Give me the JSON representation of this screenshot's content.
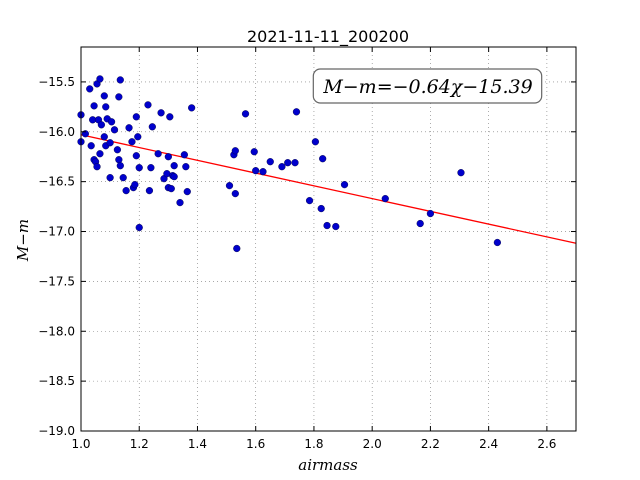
{
  "chart_data": {
    "type": "scatter",
    "title": "2021-11-11_200200",
    "xlabel": "airmass",
    "ylabel": "M−m",
    "xlim": [
      1.0,
      2.7
    ],
    "ylim": [
      -19.0,
      -15.15
    ],
    "y_inverted": true,
    "grid": true,
    "x_ticks": [
      1.0,
      1.2,
      1.4,
      1.6,
      1.8,
      2.0,
      2.2,
      2.4,
      2.6
    ],
    "x_tick_labels": [
      "1.0",
      "1.2",
      "1.4",
      "1.6",
      "1.8",
      "2.0",
      "2.2",
      "2.4",
      "2.6"
    ],
    "y_ticks": [
      -15.5,
      -16.0,
      -16.5,
      -17.0,
      -17.5,
      -18.0,
      -18.5,
      -19.0
    ],
    "y_tick_labels": [
      "−15.5",
      "−16.0",
      "−16.5",
      "−17.0",
      "−17.5",
      "−18.0",
      "−18.5",
      "−19.0"
    ],
    "annotation": "M−m=−0.64χ−15.39",
    "fit": {
      "slope": -0.64,
      "intercept": -15.39,
      "color": "#ff0000"
    },
    "point_color": "#0000cc",
    "points": [
      [
        1.0,
        -15.83
      ],
      [
        1.0,
        -16.1
      ],
      [
        1.015,
        -16.02
      ],
      [
        1.03,
        -15.57
      ],
      [
        1.035,
        -16.14
      ],
      [
        1.04,
        -15.88
      ],
      [
        1.045,
        -16.28
      ],
      [
        1.045,
        -15.74
      ],
      [
        1.05,
        -16.3
      ],
      [
        1.055,
        -15.52
      ],
      [
        1.055,
        -16.35
      ],
      [
        1.06,
        -15.88
      ],
      [
        1.065,
        -15.47
      ],
      [
        1.065,
        -16.22
      ],
      [
        1.07,
        -15.93
      ],
      [
        1.08,
        -15.64
      ],
      [
        1.08,
        -16.05
      ],
      [
        1.085,
        -15.75
      ],
      [
        1.085,
        -16.14
      ],
      [
        1.09,
        -15.87
      ],
      [
        1.1,
        -16.11
      ],
      [
        1.1,
        -16.46
      ],
      [
        1.105,
        -15.9
      ],
      [
        1.115,
        -15.98
      ],
      [
        1.125,
        -16.18
      ],
      [
        1.13,
        -15.65
      ],
      [
        1.13,
        -16.28
      ],
      [
        1.135,
        -15.48
      ],
      [
        1.135,
        -16.34
      ],
      [
        1.145,
        -16.46
      ],
      [
        1.155,
        -16.59
      ],
      [
        1.165,
        -15.96
      ],
      [
        1.175,
        -16.1
      ],
      [
        1.18,
        -16.56
      ],
      [
        1.185,
        -16.53
      ],
      [
        1.19,
        -15.85
      ],
      [
        1.19,
        -16.24
      ],
      [
        1.195,
        -16.05
      ],
      [
        1.2,
        -16.36
      ],
      [
        1.2,
        -16.96
      ],
      [
        1.23,
        -15.73
      ],
      [
        1.235,
        -16.59
      ],
      [
        1.24,
        -16.36
      ],
      [
        1.245,
        -15.95
      ],
      [
        1.265,
        -16.22
      ],
      [
        1.275,
        -15.81
      ],
      [
        1.285,
        -16.47
      ],
      [
        1.295,
        -16.42
      ],
      [
        1.3,
        -16.25
      ],
      [
        1.3,
        -16.56
      ],
      [
        1.305,
        -15.85
      ],
      [
        1.31,
        -16.57
      ],
      [
        1.315,
        -16.44
      ],
      [
        1.32,
        -16.45
      ],
      [
        1.32,
        -16.34
      ],
      [
        1.34,
        -16.71
      ],
      [
        1.355,
        -16.23
      ],
      [
        1.36,
        -16.35
      ],
      [
        1.365,
        -16.6
      ],
      [
        1.38,
        -15.76
      ],
      [
        1.51,
        -16.54
      ],
      [
        1.525,
        -16.23
      ],
      [
        1.53,
        -16.19
      ],
      [
        1.53,
        -16.62
      ],
      [
        1.535,
        -17.17
      ],
      [
        1.565,
        -15.82
      ],
      [
        1.595,
        -16.2
      ],
      [
        1.6,
        -16.39
      ],
      [
        1.625,
        -16.4
      ],
      [
        1.65,
        -16.3
      ],
      [
        1.69,
        -16.35
      ],
      [
        1.71,
        -16.31
      ],
      [
        1.735,
        -16.31
      ],
      [
        1.74,
        -15.8
      ],
      [
        1.785,
        -16.69
      ],
      [
        1.805,
        -16.1
      ],
      [
        1.825,
        -16.77
      ],
      [
        1.83,
        -16.27
      ],
      [
        1.845,
        -16.94
      ],
      [
        1.875,
        -16.95
      ],
      [
        1.905,
        -16.53
      ],
      [
        2.045,
        -16.67
      ],
      [
        2.165,
        -16.92
      ],
      [
        2.2,
        -16.82
      ],
      [
        2.305,
        -16.41
      ],
      [
        2.43,
        -17.11
      ]
    ]
  }
}
